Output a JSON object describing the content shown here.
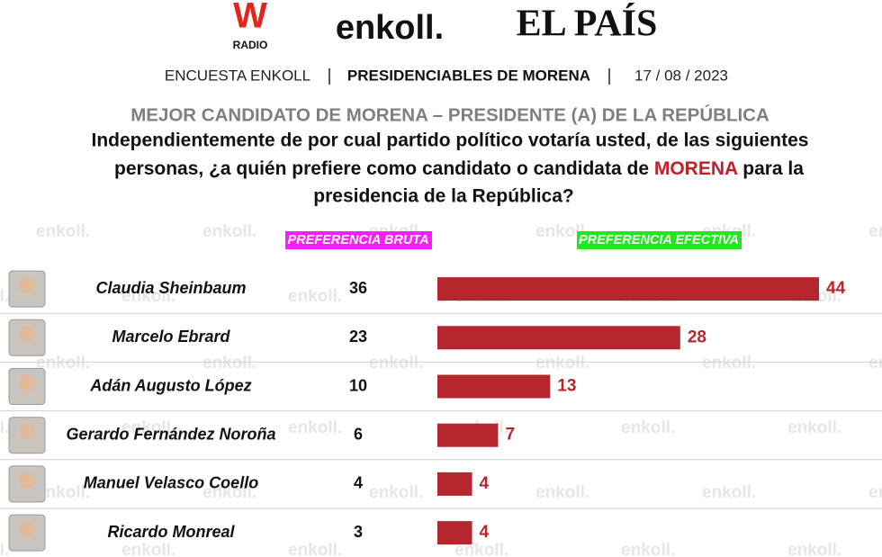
{
  "header": {
    "logo_w": "W",
    "logo_radio": "RADIO",
    "logo_enkoll": "enkoll.",
    "logo_pais": "EL PAÍS",
    "survey": "ENCUESTA ENKOLL",
    "topic": "PRESIDENCIABLES DE MORENA",
    "date": "17 / 08 / 2023"
  },
  "watermark": "enkoll.",
  "chart_data": {
    "type": "bar",
    "orientation": "horizontal",
    "title": "MEJOR CANDIDATO DE MORENA – PRESIDENTE (A) DE LA REPÚBLICA",
    "question": {
      "line1": "Independientemente de por cual partido político votaría usted, de las siguientes",
      "line2_before": "personas, ¿a quién prefiere como candidato o candidata de ",
      "highlight": "MORENA",
      "line2_after": " para la",
      "line3": "presidencia de la República?"
    },
    "categories": [
      "Claudia Sheinbaum",
      "Marcelo Ebrard",
      "Adán Augusto López",
      "Gerardo Fernández Noroña",
      "Manuel Velasco Coello",
      "Ricardo Monreal"
    ],
    "series": [
      {
        "name": "PREFERENCIA BRUTA",
        "values": [
          36,
          23,
          10,
          6,
          4,
          3
        ]
      },
      {
        "name": "PREFERENCIA EFECTIVA",
        "color": "#b5262f",
        "values": [
          44,
          28,
          13,
          7,
          4,
          4
        ]
      }
    ]
  }
}
